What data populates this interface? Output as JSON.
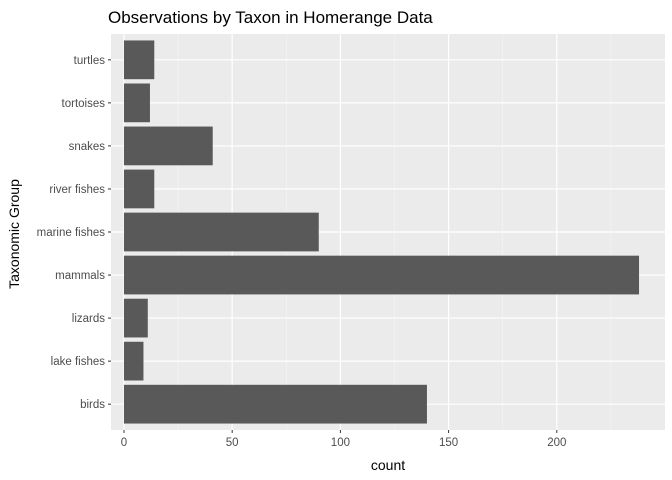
{
  "chart_data": {
    "type": "bar",
    "orientation": "horizontal",
    "title": "Observations by Taxon in Homerange Data",
    "xlabel": "count",
    "ylabel": "Taxonomic Group",
    "categories": [
      "birds",
      "lake fishes",
      "lizards",
      "mammals",
      "marine fishes",
      "river fishes",
      "snakes",
      "tortoises",
      "turtles"
    ],
    "values": [
      140,
      9,
      11,
      238,
      90,
      14,
      41,
      12,
      14
    ],
    "xlim": [
      -6,
      250
    ],
    "xticks": [
      0,
      50,
      100,
      150,
      200
    ],
    "xtick_labels": [
      "0",
      "50",
      "100",
      "150",
      "200"
    ],
    "grid": true,
    "colors": {
      "panel": "#ebebeb",
      "grid_major": "#ffffff",
      "grid_minor": "#f5f5f5",
      "bar": "#595959",
      "tick": "#333333"
    }
  }
}
